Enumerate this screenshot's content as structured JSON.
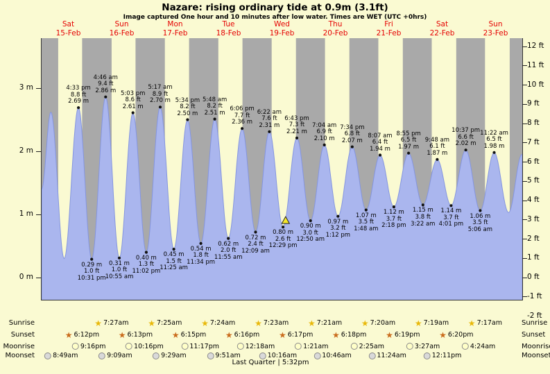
{
  "page": {
    "title": "Nazare: rising ordinary tide at 0.9m (3.1ft)",
    "subtitle": "Image captured One hour and 10 minutes after low water. Times are WET (UTC +0hrs)"
  },
  "colors": {
    "background": "#fafad2",
    "night_band": "#a9a9a9",
    "tide_fill": "#aab6ee",
    "tide_stroke": "#8495e0",
    "day_label": "#e50000",
    "marker_fill": "#f5e72a"
  },
  "chart_data": {
    "type": "area",
    "title": "Nazare: rising ordinary tide at 0.9m (3.1ft)",
    "x_axis": {
      "days": [
        {
          "name": "Sat",
          "date": "15-Feb"
        },
        {
          "name": "Sun",
          "date": "16-Feb"
        },
        {
          "name": "Mon",
          "date": "17-Feb"
        },
        {
          "name": "Tue",
          "date": "18-Feb"
        },
        {
          "name": "Wed",
          "date": "19-Feb"
        },
        {
          "name": "Thu",
          "date": "20-Feb"
        },
        {
          "name": "Fri",
          "date": "21-Feb"
        },
        {
          "name": "Sat",
          "date": "22-Feb"
        },
        {
          "name": "Sun",
          "date": "23-Feb"
        }
      ]
    },
    "y_axis_left": {
      "unit": "m",
      "ticks": [
        {
          "label": "3 m",
          "value": 3
        },
        {
          "label": "2 m",
          "value": 2
        },
        {
          "label": "1 m",
          "value": 1
        },
        {
          "label": "0 m",
          "value": 0
        }
      ]
    },
    "y_axis_right": {
      "unit": "ft",
      "ticks": [
        {
          "label": "12 ft",
          "value": 12
        },
        {
          "label": "11 ft",
          "value": 11
        },
        {
          "label": "10 ft",
          "value": 10
        },
        {
          "label": "9 ft",
          "value": 9
        },
        {
          "label": "8 ft",
          "value": 8
        },
        {
          "label": "7 ft",
          "value": 7
        },
        {
          "label": "6 ft",
          "value": 6
        },
        {
          "label": "5 ft",
          "value": 5
        },
        {
          "label": "4 ft",
          "value": 4
        },
        {
          "label": "3 ft",
          "value": 3
        },
        {
          "label": "2 ft",
          "value": 2
        },
        {
          "label": "1 ft",
          "value": 1
        },
        {
          "label": "0 ft",
          "value": 0
        },
        {
          "label": "-1 ft",
          "value": -1
        },
        {
          "label": "-2 ft",
          "value": -2
        }
      ]
    },
    "tide_events": [
      {
        "type": "high",
        "day": 0,
        "time": "4:33 pm",
        "ft": "8.8 ft",
        "m": "2.69 m",
        "height_m": 2.69
      },
      {
        "type": "low",
        "day": 0,
        "time": "10:31 pm",
        "ft": "1.0 ft",
        "m": "0.29 m",
        "height_m": 0.29
      },
      {
        "type": "high",
        "day": 1,
        "time": "4:46 am",
        "ft": "9.4 ft",
        "m": "2.86 m",
        "height_m": 2.86
      },
      {
        "type": "low",
        "day": 1,
        "time": "10:55 am",
        "ft": "1.0 ft",
        "m": "0.31 m",
        "height_m": 0.31
      },
      {
        "type": "high",
        "day": 1,
        "time": "5:03 pm",
        "ft": "8.6 ft",
        "m": "2.61 m",
        "height_m": 2.61
      },
      {
        "type": "low",
        "day": 1,
        "time": "11:02 pm",
        "ft": "1.3 ft",
        "m": "0.40 m",
        "height_m": 0.4
      },
      {
        "type": "high",
        "day": 2,
        "time": "5:17 am",
        "ft": "8.9 ft",
        "m": "2.70 m",
        "height_m": 2.7
      },
      {
        "type": "low",
        "day": 2,
        "time": "11:25 am",
        "ft": "1.5 ft",
        "m": "0.45 m",
        "height_m": 0.45
      },
      {
        "type": "high",
        "day": 2,
        "time": "5:34 pm",
        "ft": "8.2 ft",
        "m": "2.50 m",
        "height_m": 2.5
      },
      {
        "type": "low",
        "day": 2,
        "time": "11:34 pm",
        "ft": "1.8 ft",
        "m": "0.54 m",
        "height_m": 0.54
      },
      {
        "type": "high",
        "day": 3,
        "time": "5:48 am",
        "ft": "8.2 ft",
        "m": "2.51 m",
        "height_m": 2.51
      },
      {
        "type": "low",
        "day": 3,
        "time": "11:55 am",
        "ft": "2.0 ft",
        "m": "0.62 m",
        "height_m": 0.62
      },
      {
        "type": "high",
        "day": 3,
        "time": "6:06 pm",
        "ft": "7.7 ft",
        "m": "2.36 m",
        "height_m": 2.36
      },
      {
        "type": "low",
        "day": 4,
        "time": "12:09 am",
        "ft": "2.4 ft",
        "m": "0.72 m",
        "height_m": 0.72
      },
      {
        "type": "high",
        "day": 4,
        "time": "6:22 am",
        "ft": "7.6 ft",
        "m": "2.31 m",
        "height_m": 2.31
      },
      {
        "type": "low",
        "day": 4,
        "time": "12:29 pm",
        "ft": "2.6 ft",
        "m": "0.80 m",
        "height_m": 0.8
      },
      {
        "type": "high",
        "day": 4,
        "time": "6:43 pm",
        "ft": "7.3 ft",
        "m": "2.21 m",
        "height_m": 2.21
      },
      {
        "type": "low",
        "day": 5,
        "time": "12:50 am",
        "ft": "3.0 ft",
        "m": "0.90 m",
        "height_m": 0.9
      },
      {
        "type": "high",
        "day": 5,
        "time": "7:04 am",
        "ft": "6.9 ft",
        "m": "2.10 m",
        "height_m": 2.1
      },
      {
        "type": "low",
        "day": 5,
        "time": "1:12 pm",
        "ft": "3.2 ft",
        "m": "0.97 m",
        "height_m": 0.97
      },
      {
        "type": "high",
        "day": 5,
        "time": "7:34 pm",
        "ft": "6.8 ft",
        "m": "2.07 m",
        "height_m": 2.07
      },
      {
        "type": "low",
        "day": 6,
        "time": "1:48 am",
        "ft": "3.5 ft",
        "m": "1.07 m",
        "height_m": 1.07
      },
      {
        "type": "high",
        "day": 6,
        "time": "8:07 am",
        "ft": "6.4 ft",
        "m": "1.94 m",
        "height_m": 1.94
      },
      {
        "type": "low",
        "day": 6,
        "time": "2:18 pm",
        "ft": "3.7 ft",
        "m": "1.12 m",
        "height_m": 1.12
      },
      {
        "type": "high",
        "day": 6,
        "time": "8:55 pm",
        "ft": "6.5 ft",
        "m": "1.97 m",
        "height_m": 1.97
      },
      {
        "type": "low",
        "day": 7,
        "time": "3:22 am",
        "ft": "3.8 ft",
        "m": "1.15 m",
        "height_m": 1.15
      },
      {
        "type": "high",
        "day": 7,
        "time": "9:48 am",
        "ft": "6.1 ft",
        "m": "1.87 m",
        "height_m": 1.87
      },
      {
        "type": "low",
        "day": 7,
        "time": "4:01 pm",
        "ft": "3.7 ft",
        "m": "1.14 m",
        "height_m": 1.14
      },
      {
        "type": "high",
        "day": 7,
        "time": "10:37 pm",
        "ft": "6.6 ft",
        "m": "2.02 m",
        "height_m": 2.02
      },
      {
        "type": "low",
        "day": 8,
        "time": "5:06 am",
        "ft": "3.5 ft",
        "m": "1.06 m",
        "height_m": 1.06
      },
      {
        "type": "high",
        "day": 8,
        "time": "11:22 am",
        "ft": "6.5 ft",
        "m": "1.98 m",
        "height_m": 1.98
      }
    ],
    "curve_edge_points": [
      {
        "day": 0,
        "time": "12:00 am",
        "height_m": 1.4
      },
      {
        "day": 0,
        "time": "4:10 am",
        "height_m": 2.62
      },
      {
        "day": 0,
        "time": "10:08 am",
        "height_m": 0.3
      },
      {
        "day": 8,
        "time": "5:52 pm",
        "height_m": 1.03
      },
      {
        "day": 8,
        "time": "11:52 pm",
        "height_m": 1.95
      }
    ],
    "current_marker": {
      "day": 4,
      "time": "1:39 pm",
      "height_m": 0.9
    },
    "night_bands": [
      {
        "from_day": 0,
        "from_time": "12:00 am",
        "to_day": 0,
        "to_time": "7:27 am"
      },
      {
        "from_day": 0,
        "from_time": "6:12 pm",
        "to_day": 1,
        "to_time": "7:27 am"
      },
      {
        "from_day": 1,
        "from_time": "6:13 pm",
        "to_day": 2,
        "to_time": "7:25 am"
      },
      {
        "from_day": 2,
        "from_time": "6:15 pm",
        "to_day": 3,
        "to_time": "7:24 am"
      },
      {
        "from_day": 3,
        "from_time": "6:16 pm",
        "to_day": 4,
        "to_time": "7:23 am"
      },
      {
        "from_day": 4,
        "from_time": "6:17 pm",
        "to_day": 5,
        "to_time": "7:21 am"
      },
      {
        "from_day": 5,
        "from_time": "6:18 pm",
        "to_day": 6,
        "to_time": "7:20 am"
      },
      {
        "from_day": 6,
        "from_time": "6:19 pm",
        "to_day": 7,
        "to_time": "7:19 am"
      },
      {
        "from_day": 7,
        "from_time": "6:20 pm",
        "to_day": 8,
        "to_time": "7:17 am"
      },
      {
        "from_day": 8,
        "from_time": "6:21 pm",
        "to_day": 9,
        "to_time": "12:00 am"
      }
    ]
  },
  "almanac": {
    "rows": [
      {
        "label": "Sunrise",
        "icon": "sunrise-star",
        "entries": [
          {
            "day": 1,
            "time": "7:27am"
          },
          {
            "day": 2,
            "time": "7:25am"
          },
          {
            "day": 3,
            "time": "7:24am"
          },
          {
            "day": 4,
            "time": "7:23am"
          },
          {
            "day": 5,
            "time": "7:21am"
          },
          {
            "day": 6,
            "time": "7:20am"
          },
          {
            "day": 7,
            "time": "7:19am"
          },
          {
            "day": 8,
            "time": "7:17am"
          }
        ]
      },
      {
        "label": "Sunset",
        "icon": "sunset-star",
        "entries": [
          {
            "day": 0,
            "time": "6:12pm"
          },
          {
            "day": 1,
            "time": "6:13pm"
          },
          {
            "day": 2,
            "time": "6:15pm"
          },
          {
            "day": 3,
            "time": "6:16pm"
          },
          {
            "day": 4,
            "time": "6:17pm"
          },
          {
            "day": 5,
            "time": "6:18pm"
          },
          {
            "day": 6,
            "time": "6:19pm"
          },
          {
            "day": 7,
            "time": "6:20pm"
          }
        ]
      },
      {
        "label": "Moonrise",
        "icon": "moon",
        "entries": [
          {
            "day": 0,
            "time": "9:16pm"
          },
          {
            "day": 1,
            "time": "10:16pm"
          },
          {
            "day": 2,
            "time": "11:17pm"
          },
          {
            "day": 4,
            "time": "12:18am"
          },
          {
            "day": 5,
            "time": "1:21am"
          },
          {
            "day": 6,
            "time": "2:25am"
          },
          {
            "day": 7,
            "time": "3:27am"
          },
          {
            "day": 8,
            "time": "4:24am"
          }
        ]
      },
      {
        "label": "Moonset",
        "icon": "moon-gray",
        "entries": [
          {
            "day": 0,
            "time": "8:49am"
          },
          {
            "day": 1,
            "time": "9:09am"
          },
          {
            "day": 2,
            "time": "9:29am"
          },
          {
            "day": 3,
            "time": "9:51am"
          },
          {
            "day": 4,
            "time": "10:16am"
          },
          {
            "day": 5,
            "time": "10:46am"
          },
          {
            "day": 6,
            "time": "11:24am"
          },
          {
            "day": 7,
            "time": "12:11pm"
          }
        ]
      }
    ],
    "moon_phase": "Last Quarter | 5:32pm"
  }
}
